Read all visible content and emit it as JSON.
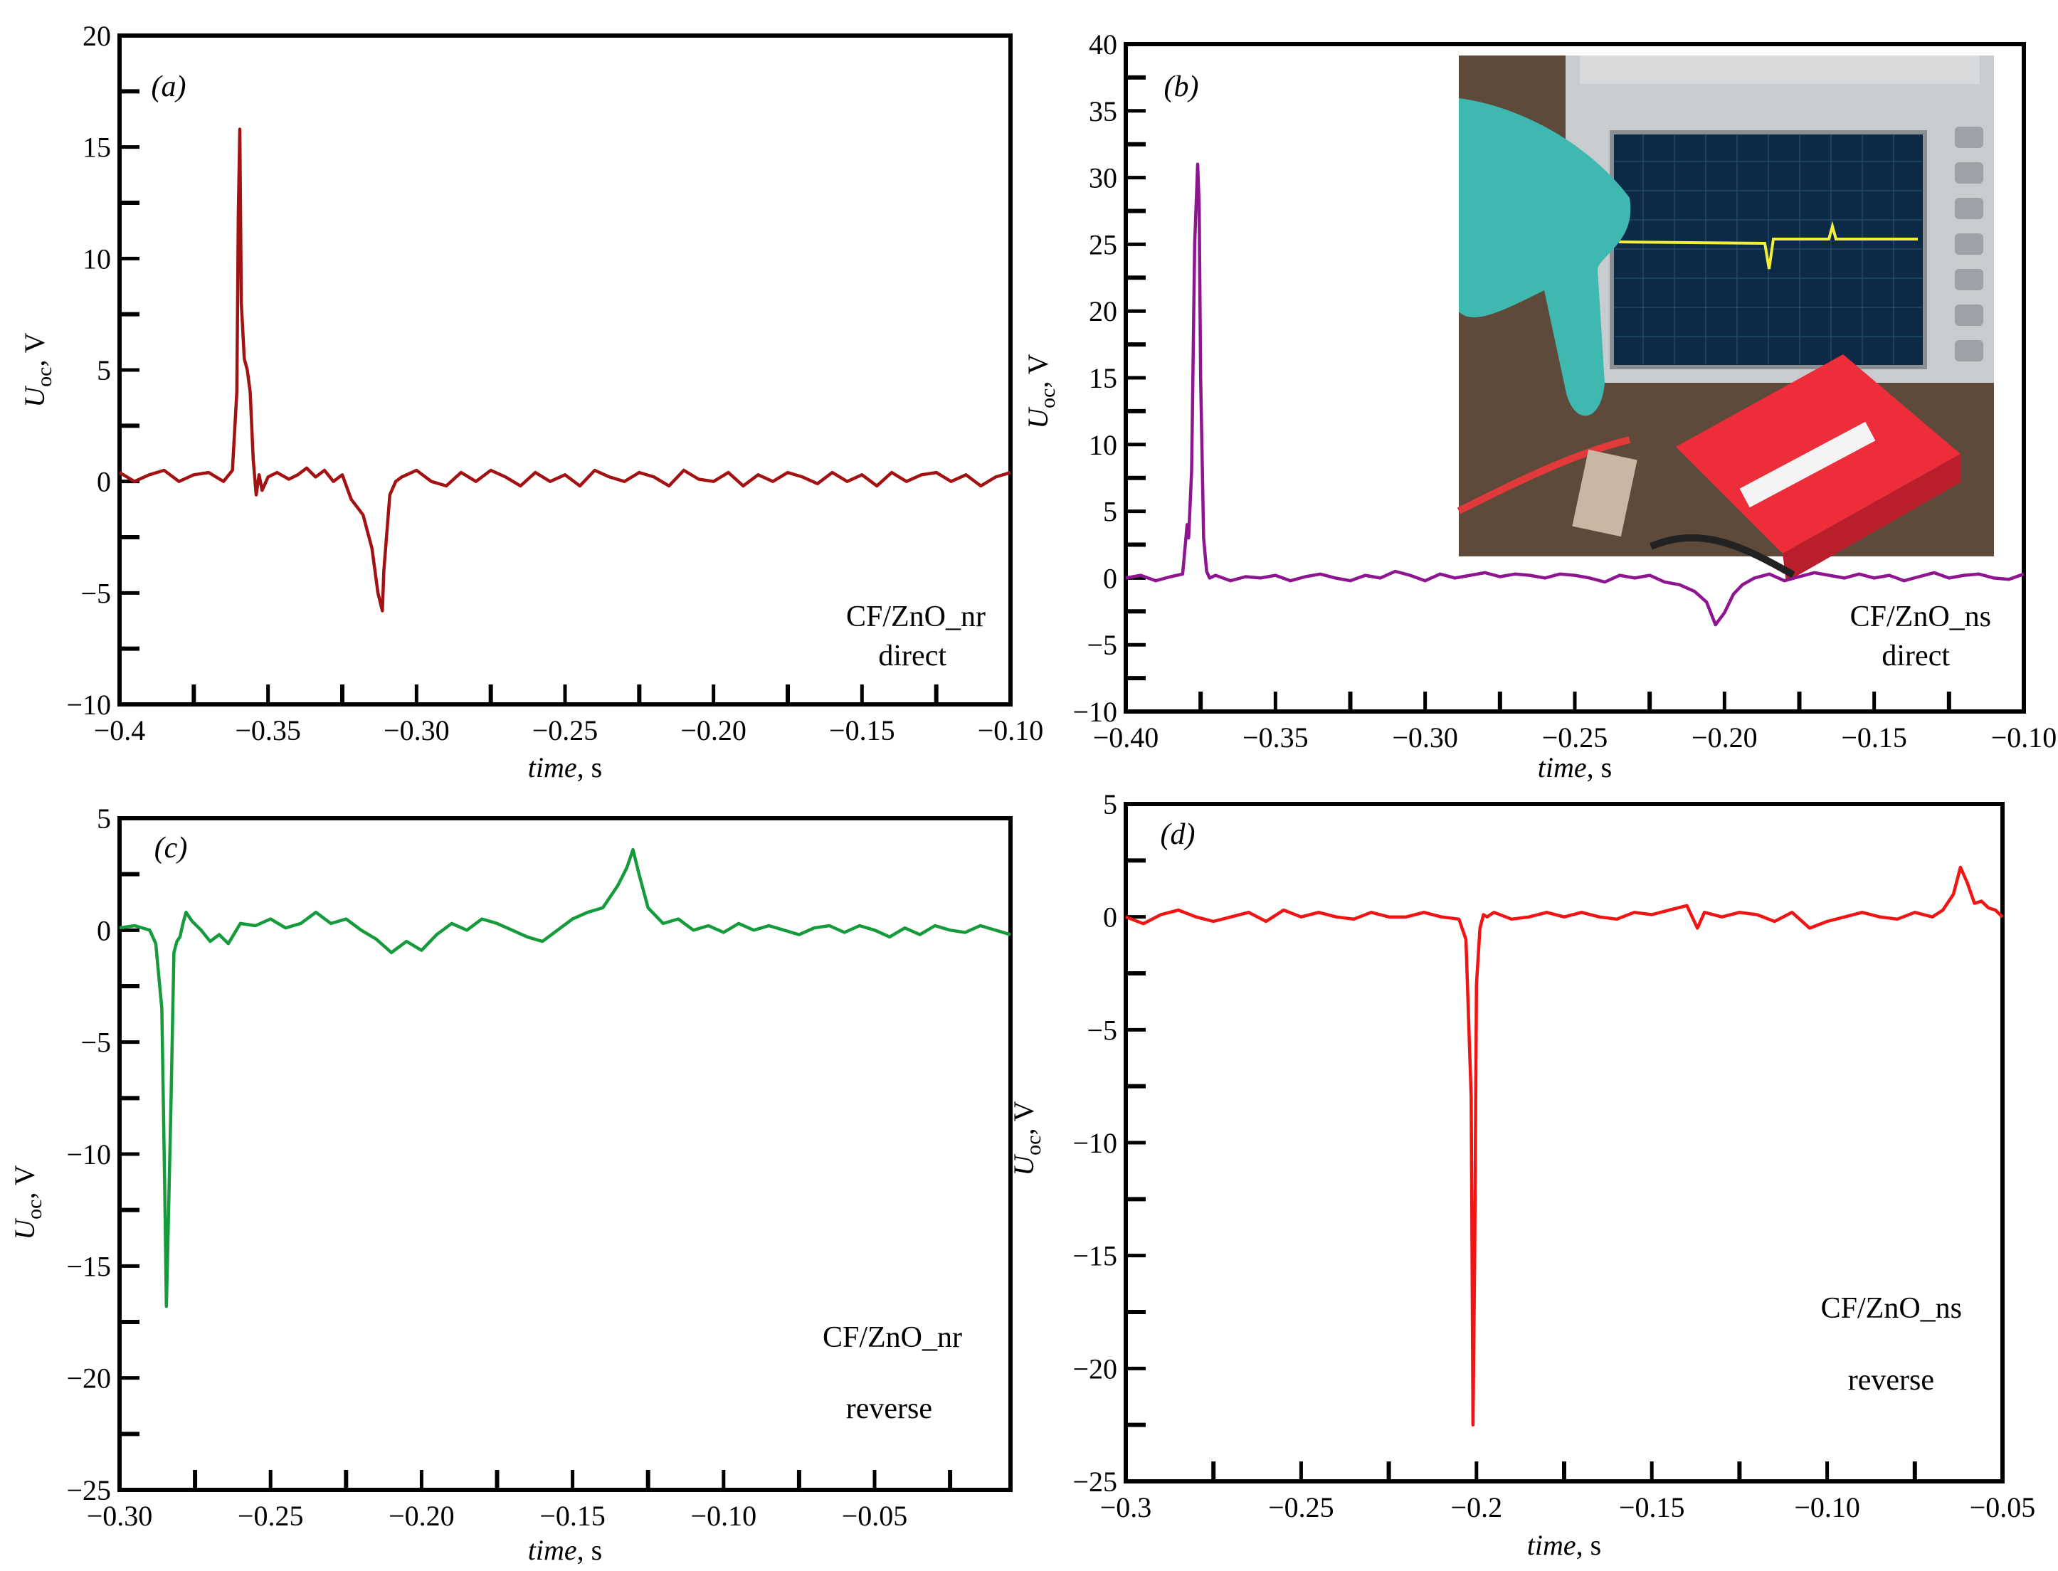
{
  "chart_data": [
    {
      "type": "line",
      "panel_label": "(a)",
      "xlabel": "time, s",
      "ylabel": "Uoc, V",
      "ylabel_main": "U",
      "ylabel_sub": "oc",
      "ylabel_unit": ", V",
      "xlim": [
        -0.4,
        -0.1
      ],
      "ylim": [
        -10,
        20
      ],
      "xticks": [
        -0.4,
        -0.35,
        -0.3,
        -0.25,
        -0.2,
        -0.15,
        -0.1
      ],
      "xtick_labels": [
        "−0.4",
        "−0.35",
        "−0.30",
        "−0.25",
        "−0.20",
        "−0.15",
        "−0.10"
      ],
      "yticks": [
        -10,
        -5,
        0,
        5,
        10,
        15,
        20
      ],
      "ytick_labels": [
        "−10",
        "−5",
        "0",
        "5",
        "10",
        "15",
        "20"
      ],
      "annotations": [
        "CF/ZnO_nr",
        "direct"
      ],
      "series": [
        {
          "color": "#a31212",
          "x": [
            -0.4,
            -0.395,
            -0.39,
            -0.385,
            -0.38,
            -0.375,
            -0.37,
            -0.365,
            -0.362,
            -0.3605,
            -0.36,
            -0.3595,
            -0.359,
            -0.358,
            -0.357,
            -0.356,
            -0.355,
            -0.354,
            -0.353,
            -0.352,
            -0.35,
            -0.347,
            -0.343,
            -0.34,
            -0.337,
            -0.334,
            -0.331,
            -0.328,
            -0.325,
            -0.322,
            -0.318,
            -0.315,
            -0.313,
            -0.3115,
            -0.311,
            -0.309,
            -0.307,
            -0.305,
            -0.3,
            -0.295,
            -0.29,
            -0.285,
            -0.28,
            -0.275,
            -0.27,
            -0.265,
            -0.26,
            -0.255,
            -0.25,
            -0.245,
            -0.24,
            -0.235,
            -0.23,
            -0.225,
            -0.22,
            -0.215,
            -0.21,
            -0.205,
            -0.2,
            -0.195,
            -0.19,
            -0.185,
            -0.18,
            -0.175,
            -0.17,
            -0.165,
            -0.16,
            -0.155,
            -0.15,
            -0.145,
            -0.14,
            -0.135,
            -0.13,
            -0.125,
            -0.12,
            -0.115,
            -0.11,
            -0.105,
            -0.1
          ],
          "y": [
            0.4,
            0.0,
            0.3,
            0.5,
            0.0,
            0.3,
            0.4,
            0.0,
            0.5,
            4.0,
            12.0,
            15.8,
            8.0,
            5.5,
            5.0,
            4.0,
            1.0,
            -0.6,
            0.3,
            -0.4,
            0.2,
            0.4,
            0.1,
            0.3,
            0.6,
            0.2,
            0.5,
            0.0,
            0.3,
            -0.8,
            -1.5,
            -3.0,
            -5.0,
            -5.8,
            -4.0,
            -0.6,
            0.0,
            0.2,
            0.5,
            0.0,
            -0.2,
            0.4,
            0.0,
            0.5,
            0.2,
            -0.2,
            0.4,
            0.0,
            0.3,
            -0.2,
            0.5,
            0.2,
            0.0,
            0.4,
            0.2,
            -0.2,
            0.5,
            0.1,
            0.0,
            0.4,
            -0.2,
            0.3,
            0.0,
            0.4,
            0.2,
            -0.1,
            0.4,
            0.0,
            0.3,
            -0.2,
            0.4,
            0.0,
            0.3,
            0.4,
            0.0,
            0.3,
            -0.2,
            0.2,
            0.4
          ]
        }
      ]
    },
    {
      "type": "line",
      "panel_label": "(b)",
      "xlabel": "time, s",
      "ylabel": "Uoc, V",
      "ylabel_main": "U",
      "ylabel_sub": "oc",
      "ylabel_unit": ", V",
      "xlim": [
        -0.4,
        -0.1
      ],
      "ylim": [
        -10,
        40
      ],
      "xticks": [
        -0.4,
        -0.35,
        -0.3,
        -0.25,
        -0.2,
        -0.15,
        -0.1
      ],
      "xtick_labels": [
        "−0.40",
        "−0.35",
        "−0.30",
        "−0.25",
        "−0.20",
        "−0.15",
        "−0.10"
      ],
      "yticks": [
        -10,
        -5,
        0,
        5,
        10,
        15,
        20,
        25,
        30,
        35,
        40
      ],
      "ytick_labels": [
        "−10",
        "−5",
        "0",
        "5",
        "10",
        "15",
        "20",
        "25",
        "30",
        "35",
        "40"
      ],
      "annotations": [
        "CF/ZnO_ns",
        "direct"
      ],
      "inset": "oscilloscope-photo",
      "series": [
        {
          "color": "#8e1590",
          "x": [
            -0.4,
            -0.395,
            -0.39,
            -0.385,
            -0.381,
            -0.3795,
            -0.379,
            -0.378,
            -0.377,
            -0.376,
            -0.3755,
            -0.375,
            -0.374,
            -0.373,
            -0.372,
            -0.37,
            -0.365,
            -0.36,
            -0.355,
            -0.35,
            -0.345,
            -0.34,
            -0.335,
            -0.33,
            -0.325,
            -0.32,
            -0.315,
            -0.31,
            -0.305,
            -0.3,
            -0.295,
            -0.29,
            -0.285,
            -0.28,
            -0.275,
            -0.27,
            -0.265,
            -0.26,
            -0.255,
            -0.25,
            -0.245,
            -0.24,
            -0.235,
            -0.23,
            -0.225,
            -0.22,
            -0.215,
            -0.21,
            -0.206,
            -0.203,
            -0.2,
            -0.197,
            -0.194,
            -0.19,
            -0.185,
            -0.18,
            -0.175,
            -0.17,
            -0.165,
            -0.16,
            -0.155,
            -0.15,
            -0.145,
            -0.14,
            -0.135,
            -0.13,
            -0.125,
            -0.12,
            -0.115,
            -0.11,
            -0.105,
            -0.1
          ],
          "y": [
            0.0,
            0.2,
            -0.2,
            0.1,
            0.3,
            4.0,
            3.0,
            8.0,
            25.0,
            31.0,
            28.0,
            15.0,
            3.0,
            0.5,
            0.0,
            0.2,
            -0.2,
            0.1,
            0.0,
            0.2,
            -0.2,
            0.1,
            0.3,
            0.0,
            -0.2,
            0.2,
            0.0,
            0.5,
            0.2,
            -0.2,
            0.3,
            0.0,
            0.2,
            0.4,
            0.1,
            0.3,
            0.2,
            0.0,
            0.3,
            0.2,
            0.0,
            -0.3,
            0.2,
            0.0,
            0.2,
            -0.3,
            -0.5,
            -1.0,
            -1.8,
            -3.5,
            -2.6,
            -1.2,
            -0.5,
            0.0,
            0.3,
            -0.2,
            0.1,
            0.4,
            0.2,
            0.0,
            0.3,
            0.0,
            0.2,
            -0.2,
            0.1,
            0.4,
            0.0,
            0.2,
            0.3,
            0.0,
            -0.1,
            0.3
          ]
        }
      ]
    },
    {
      "type": "line",
      "panel_label": "(c)",
      "xlabel": "time, s",
      "ylabel": "Uoc, V",
      "ylabel_main": "U",
      "ylabel_sub": "oc",
      "ylabel_unit": ", V",
      "xlim": [
        -0.3,
        -0.005
      ],
      "ylim": [
        -25,
        5
      ],
      "xticks": [
        -0.3,
        -0.25,
        -0.2,
        -0.15,
        -0.1,
        -0.05
      ],
      "xtick_labels": [
        "−0.30",
        "−0.25",
        "−0.20",
        "−0.15",
        "−0.10",
        "−0.05"
      ],
      "yticks": [
        -25,
        -20,
        -15,
        -10,
        -5,
        0,
        5
      ],
      "ytick_labels": [
        "−25",
        "−20",
        "−15",
        "−10",
        "−5",
        "0",
        "5"
      ],
      "annotations": [
        "CF/ZnO_nr",
        "reverse"
      ],
      "series": [
        {
          "color": "#159a3c",
          "x": [
            -0.3,
            -0.295,
            -0.29,
            -0.288,
            -0.286,
            -0.285,
            -0.2845,
            -0.284,
            -0.283,
            -0.282,
            -0.281,
            -0.28,
            -0.279,
            -0.278,
            -0.276,
            -0.273,
            -0.27,
            -0.267,
            -0.264,
            -0.26,
            -0.255,
            -0.25,
            -0.245,
            -0.24,
            -0.235,
            -0.23,
            -0.225,
            -0.22,
            -0.215,
            -0.21,
            -0.205,
            -0.2,
            -0.195,
            -0.19,
            -0.185,
            -0.18,
            -0.175,
            -0.17,
            -0.165,
            -0.16,
            -0.155,
            -0.15,
            -0.145,
            -0.14,
            -0.135,
            -0.132,
            -0.13,
            -0.128,
            -0.125,
            -0.12,
            -0.115,
            -0.11,
            -0.105,
            -0.1,
            -0.095,
            -0.09,
            -0.085,
            -0.08,
            -0.075,
            -0.07,
            -0.065,
            -0.06,
            -0.055,
            -0.05,
            -0.045,
            -0.04,
            -0.035,
            -0.03,
            -0.025,
            -0.02,
            -0.015,
            -0.01,
            -0.005
          ],
          "y": [
            0.1,
            0.2,
            0.0,
            -0.6,
            -3.5,
            -12.0,
            -16.8,
            -14.0,
            -8.0,
            -1.0,
            -0.5,
            -0.3,
            0.3,
            0.8,
            0.4,
            0.0,
            -0.5,
            -0.2,
            -0.6,
            0.3,
            0.2,
            0.5,
            0.1,
            0.3,
            0.8,
            0.3,
            0.5,
            0.0,
            -0.4,
            -1.0,
            -0.5,
            -0.9,
            -0.2,
            0.3,
            0.0,
            0.5,
            0.3,
            0.0,
            -0.3,
            -0.5,
            0.0,
            0.5,
            0.8,
            1.0,
            2.0,
            2.8,
            3.6,
            2.5,
            1.0,
            0.3,
            0.5,
            0.0,
            0.2,
            -0.1,
            0.3,
            0.0,
            0.2,
            0.0,
            -0.2,
            0.1,
            0.2,
            -0.1,
            0.2,
            0.0,
            -0.3,
            0.1,
            -0.2,
            0.2,
            0.0,
            -0.1,
            0.2,
            0.0,
            -0.2
          ]
        }
      ]
    },
    {
      "type": "line",
      "panel_label": "(d)",
      "xlabel": "time, s",
      "ylabel": "Uoc, V",
      "ylabel_main": "U",
      "ylabel_sub": "oc",
      "ylabel_unit": ", V",
      "xlim": [
        -0.3,
        -0.05
      ],
      "ylim": [
        -25,
        5
      ],
      "xticks": [
        -0.3,
        -0.25,
        -0.2,
        -0.15,
        -0.1,
        -0.05
      ],
      "xtick_labels": [
        "−0.3",
        "−0.25",
        "−0.2",
        "−0.15",
        "−0.10",
        "−0.05"
      ],
      "yticks": [
        -25,
        -20,
        -15,
        -10,
        -5,
        0,
        5
      ],
      "ytick_labels": [
        "−25",
        "−20",
        "−15",
        "−10",
        "−5",
        "0",
        "5"
      ],
      "annotations": [
        "CF/ZnO_ns",
        "reverse"
      ],
      "series": [
        {
          "color": "#f01414",
          "x": [
            -0.3,
            -0.295,
            -0.29,
            -0.285,
            -0.28,
            -0.275,
            -0.27,
            -0.265,
            -0.26,
            -0.255,
            -0.25,
            -0.245,
            -0.24,
            -0.235,
            -0.23,
            -0.225,
            -0.22,
            -0.215,
            -0.21,
            -0.205,
            -0.203,
            -0.2015,
            -0.201,
            -0.2005,
            -0.2,
            -0.199,
            -0.198,
            -0.197,
            -0.195,
            -0.19,
            -0.185,
            -0.18,
            -0.175,
            -0.17,
            -0.165,
            -0.16,
            -0.155,
            -0.15,
            -0.145,
            -0.14,
            -0.137,
            -0.135,
            -0.13,
            -0.125,
            -0.12,
            -0.115,
            -0.11,
            -0.105,
            -0.1,
            -0.095,
            -0.09,
            -0.085,
            -0.08,
            -0.075,
            -0.07,
            -0.067,
            -0.064,
            -0.062,
            -0.06,
            -0.058,
            -0.056,
            -0.054,
            -0.052,
            -0.05
          ],
          "y": [
            0.0,
            -0.3,
            0.1,
            0.3,
            0.0,
            -0.2,
            0.0,
            0.2,
            -0.2,
            0.3,
            0.0,
            0.2,
            0.0,
            -0.1,
            0.2,
            0.0,
            0.0,
            0.2,
            0.0,
            -0.1,
            -1.0,
            -8.0,
            -22.5,
            -15.0,
            -3.0,
            -0.5,
            0.1,
            0.0,
            0.2,
            -0.1,
            0.0,
            0.2,
            0.0,
            0.2,
            0.0,
            -0.1,
            0.2,
            0.1,
            0.3,
            0.5,
            -0.5,
            0.2,
            0.0,
            0.2,
            0.1,
            -0.2,
            0.2,
            -0.5,
            -0.2,
            0.0,
            0.2,
            0.0,
            -0.1,
            0.2,
            0.0,
            0.3,
            1.0,
            2.2,
            1.5,
            0.6,
            0.7,
            0.4,
            0.3,
            0.0
          ]
        }
      ]
    }
  ]
}
